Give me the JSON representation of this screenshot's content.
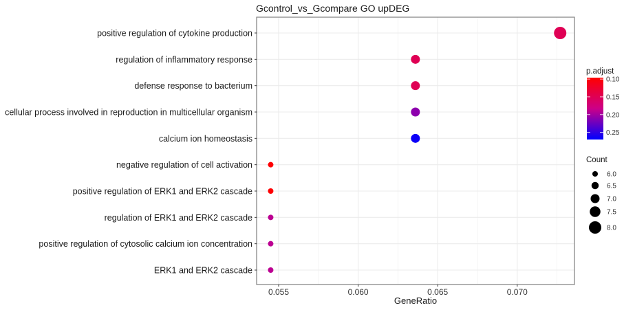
{
  "chart_data": {
    "type": "scatter",
    "title": "Gcontrol_vs_Gcompare GO upDEG",
    "xlabel": "GeneRatio",
    "ylabel": "",
    "xlim": [
      0.0541,
      0.074
    ],
    "xticks": [
      0.055,
      0.06,
      0.065,
      0.07
    ],
    "xtick_labels": [
      "0.055",
      "0.060",
      "0.065",
      "0.070"
    ],
    "grid": true,
    "categories": [
      "positive regulation of cytokine production",
      "regulation of inflammatory response",
      "defense response to bacterium",
      "cellular process involved in reproduction in multicellular organism",
      "calcium ion homeostasis",
      "negative regulation of cell activation",
      "positive regulation of ERK1 and ERK2 cascade",
      "regulation of ERK1 and ERK2 cascade",
      "positive regulation of cytosolic calcium ion concentration",
      "ERK1 and ERK2 cascade"
    ],
    "points": [
      {
        "term": "positive regulation of cytokine production",
        "gene_ratio": 0.0727,
        "count": 8,
        "p_adjust": 0.15
      },
      {
        "term": "regulation of inflammatory response",
        "gene_ratio": 0.0636,
        "count": 7,
        "p_adjust": 0.15
      },
      {
        "term": "defense response to bacterium",
        "gene_ratio": 0.0636,
        "count": 7,
        "p_adjust": 0.15
      },
      {
        "term": "cellular process involved in reproduction in multicellular organism",
        "gene_ratio": 0.0636,
        "count": 7,
        "p_adjust": 0.21
      },
      {
        "term": "calcium ion homeostasis",
        "gene_ratio": 0.0636,
        "count": 7,
        "p_adjust": 0.265
      },
      {
        "term": "negative regulation of cell activation",
        "gene_ratio": 0.0545,
        "count": 6,
        "p_adjust": 0.098
      },
      {
        "term": "positive regulation of ERK1 and ERK2 cascade",
        "gene_ratio": 0.0545,
        "count": 6,
        "p_adjust": 0.098
      },
      {
        "term": "regulation of ERK1 and ERK2 cascade",
        "gene_ratio": 0.0545,
        "count": 6,
        "p_adjust": 0.19
      },
      {
        "term": "positive regulation of cytosolic calcium ion concentration",
        "gene_ratio": 0.0545,
        "count": 6,
        "p_adjust": 0.19
      },
      {
        "term": "ERK1 and ERK2 cascade",
        "gene_ratio": 0.0545,
        "count": 6,
        "p_adjust": 0.19
      }
    ],
    "color_legend": {
      "title": "p.adjust",
      "range": [
        0.096,
        0.27
      ],
      "low_color": "#ff0000",
      "high_color": "#0000ff",
      "ticks": [
        0.1,
        0.15,
        0.2,
        0.25
      ],
      "tick_labels": [
        "0.10",
        "0.15",
        "0.20",
        "0.25"
      ]
    },
    "size_legend": {
      "title": "Count",
      "values": [
        6.0,
        6.5,
        7.0,
        7.5,
        8.0
      ],
      "labels": [
        "6.0",
        "6.5",
        "7.0",
        "7.5",
        "8.0"
      ]
    },
    "legend_placement": "right"
  }
}
